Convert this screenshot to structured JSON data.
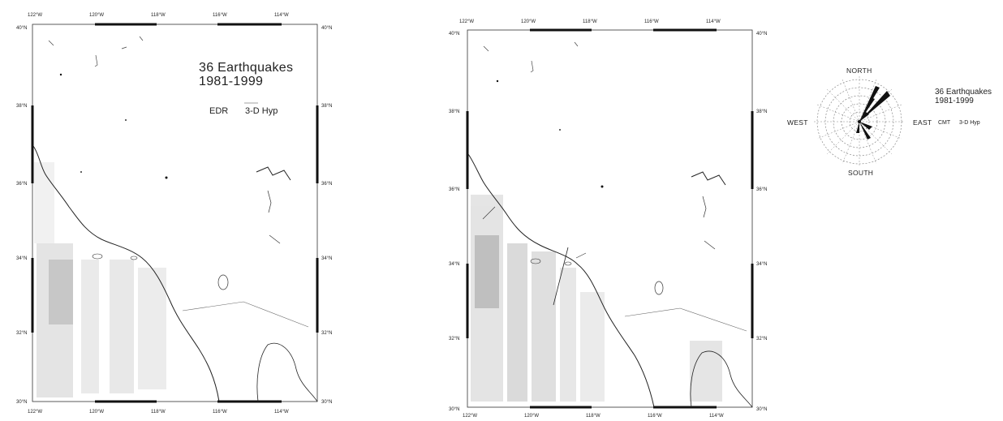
{
  "map_left": {
    "top_lon_labels": [
      "122°W",
      "120°W",
      "118°W",
      "116°W",
      "114°W"
    ],
    "bottom_lon_labels": [
      "122°W",
      "120°W",
      "118°W",
      "116°W",
      "114°W"
    ],
    "left_lat_labels": [
      "40°N",
      "38°N",
      "36°N",
      "34°N",
      "32°N",
      "30°N"
    ],
    "right_lat_labels": [
      "40°N",
      "38°N",
      "36°N",
      "34°N",
      "32°N",
      "30°N"
    ],
    "title_line1": "36 Earthquakes",
    "title_line2": "1981-1999",
    "legend_left": "EDR",
    "legend_right": "3-D Hyp"
  },
  "map_right": {
    "top_lon_labels": [
      "122°W",
      "120°W",
      "118°W",
      "116°W",
      "114°W"
    ],
    "bottom_lon_labels": [
      "122°W",
      "120°W",
      "118°W",
      "116°W",
      "114°W"
    ],
    "left_lat_labels": [
      "40°N",
      "38°N",
      "36°N",
      "34°N",
      "32°N",
      "30°N"
    ],
    "right_lat_labels": [
      "40°N",
      "38°N",
      "36°N",
      "34°N",
      "32°N",
      "30°N"
    ]
  },
  "rose": {
    "north": "NORTH",
    "south": "SOUTH",
    "east": "EAST",
    "west": "WEST",
    "title_line1": "36 Earthquakes",
    "title_line2": "1981-1999",
    "legend_left": "CMT",
    "legend_right": "3-D Hyp"
  }
}
